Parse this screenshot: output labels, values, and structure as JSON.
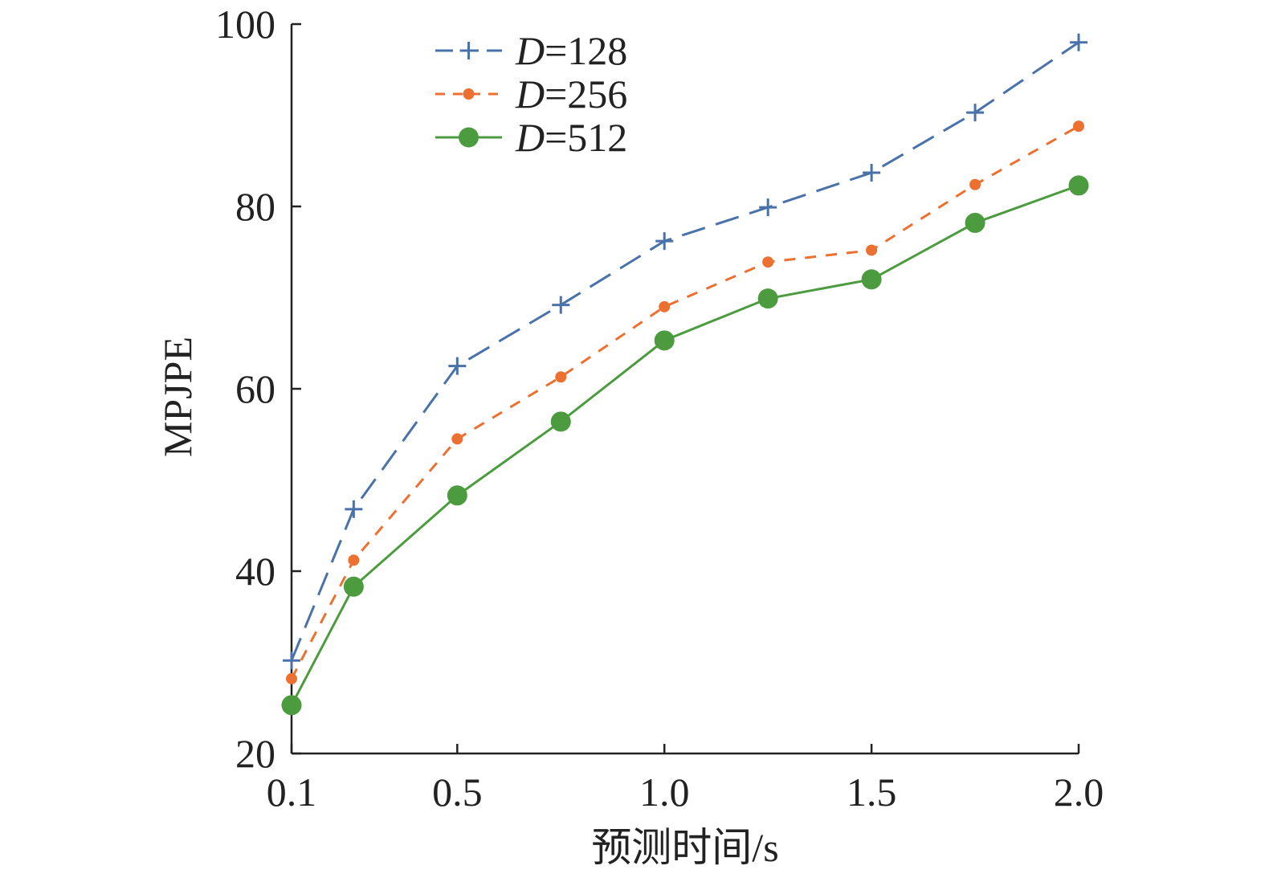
{
  "chart_data": {
    "type": "line",
    "title": "",
    "xlabel": "预测时间/s",
    "ylabel": "MPJPE",
    "x_ticks": [
      {
        "value": 0.1,
        "label": "0.1"
      },
      {
        "value": 0.5,
        "label": "0.5"
      },
      {
        "value": 1.0,
        "label": "1.0"
      },
      {
        "value": 1.5,
        "label": "1.5"
      },
      {
        "value": 2.0,
        "label": "2.0"
      }
    ],
    "y_ticks": [
      20,
      40,
      60,
      80,
      100
    ],
    "xlim": [
      0.1,
      2.0
    ],
    "ylim": [
      20,
      100
    ],
    "grid": false,
    "legend_position": "top-left",
    "x": [
      0.1,
      0.25,
      0.5,
      0.75,
      1.0,
      1.25,
      1.5,
      1.75,
      2.0
    ],
    "series": [
      {
        "name": "D=128",
        "name_italic": "D",
        "name_rest": "=128",
        "color": "#4a72aa",
        "marker": "plus",
        "line": "long-dash",
        "values": [
          30.2,
          46.8,
          62.5,
          69.2,
          76.2,
          79.9,
          83.7,
          90.3,
          98.0
        ]
      },
      {
        "name": "D=256",
        "name_italic": "D",
        "name_rest": "=256",
        "color": "#ec7030",
        "marker": "small-dot",
        "line": "short-dash",
        "values": [
          28.2,
          41.2,
          54.5,
          61.3,
          69.0,
          73.9,
          75.2,
          82.4,
          88.8
        ]
      },
      {
        "name": "D=512",
        "name_italic": "D",
        "name_rest": "=512",
        "color": "#4c9b3f",
        "marker": "large-dot",
        "line": "solid",
        "values": [
          25.3,
          38.3,
          48.3,
          56.4,
          65.3,
          69.9,
          72.0,
          78.2,
          82.3
        ]
      }
    ]
  }
}
